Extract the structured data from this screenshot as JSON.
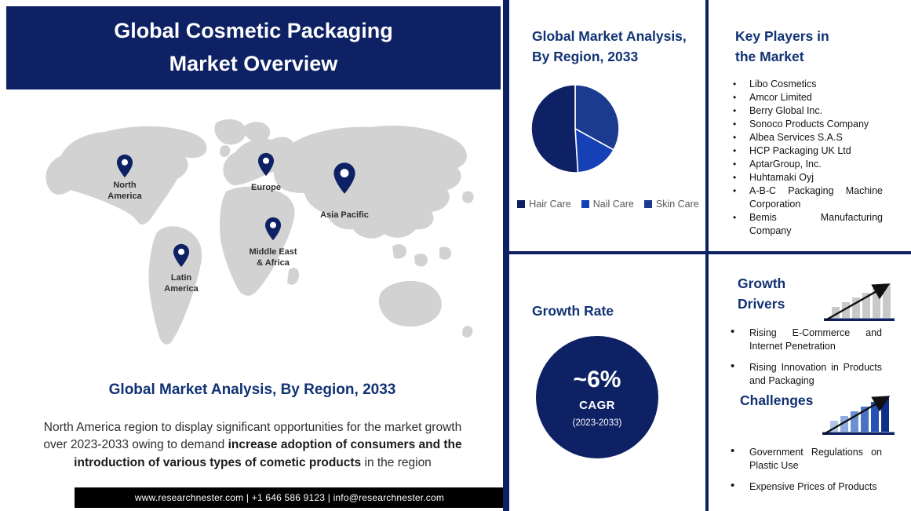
{
  "colors": {
    "navy": "#0d2164",
    "heading": "#113273",
    "map_gray": "#d2d2d2",
    "legend_text": "#595959",
    "footer_bg": "#000000"
  },
  "icons": {
    "map_pin": "location-pin",
    "growth_drivers_icon": "ascending-bar-chart-with-arrow",
    "challenges_icon": "ascending-bar-chart-with-arrow"
  },
  "header": {
    "title": "Global Cosmetic Packaging\nMarket Overview"
  },
  "map": {
    "pins": [
      {
        "label": "North\nAmerica"
      },
      {
        "label": "Europe"
      },
      {
        "label": "Asia Pacific"
      },
      {
        "label": "Middle East\n& Africa"
      },
      {
        "label": "Latin\nAmerica"
      }
    ]
  },
  "left_section": {
    "title": "Global Market Analysis, By Region, 2033",
    "paragraph": {
      "normal_1": "North America region to display significant opportunities for the market growth over 2023-2033 owing to demand ",
      "bold": "increase adoption of consumers and the introduction of various types of cometic products",
      "normal_2": " in the region"
    }
  },
  "footer": {
    "text": "www.researchnester.com | +1 646 586 9123 | info@researchnester.com"
  },
  "chart_data": [
    {
      "type": "pie",
      "title": "Global Market Analysis,\nBy Region, 2033",
      "slices": [
        {
          "label": "Skin Care",
          "value": 33,
          "color": "#1c3a8f"
        },
        {
          "label": "Nail Care",
          "value": 16,
          "color": "#1640b5"
        },
        {
          "label": "Hair Care",
          "value": 51,
          "color": "#0d2164"
        }
      ],
      "legend": [
        {
          "label": "Hair Care",
          "color": "#0d2164"
        },
        {
          "label": "Nail Care",
          "color": "#1640b5"
        },
        {
          "label": "Skin Care",
          "color": "#1c3a8f"
        }
      ],
      "start_angle_deg": -90,
      "direction": "clockwise",
      "legend_position": "bottom"
    },
    {
      "type": "kpi",
      "title": "Growth Rate",
      "value": "~6%",
      "label": "CAGR",
      "period": "(2023-2033)"
    }
  ],
  "key_players": {
    "title": "Key Players in\nthe Market",
    "items": [
      "Libo Cosmetics",
      "Amcor Limited",
      "Berry Global Inc.",
      "Sonoco Products Company",
      "Albea Services S.A.S",
      "HCP Packaging UK Ltd",
      "AptarGroup, Inc.",
      "Huhtamaki Oyj",
      "A-B-C Packaging Machine Corporation",
      "Bemis Manufacturing Company"
    ]
  },
  "growth_drivers": {
    "title": "Growth\nDrivers",
    "items": [
      "Rising E-Commerce and Internet Penetration",
      "Rising Innovation in Products and Packaging"
    ]
  },
  "challenges": {
    "title": "Challenges",
    "items": [
      "Government Regulations on Plastic Use",
      "Expensive Prices of Products"
    ]
  }
}
